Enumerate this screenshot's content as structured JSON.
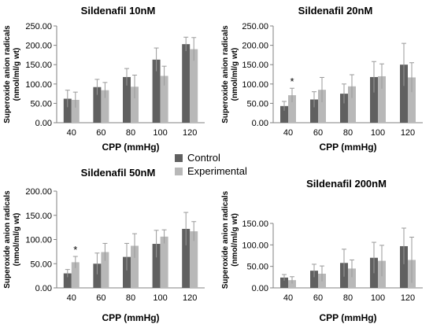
{
  "colors": {
    "control": "#606060",
    "experimental": "#b8b8b8",
    "error_bar": "#9a9a9a",
    "axis": "#808080"
  },
  "legend": {
    "control_label": "Control",
    "experimental_label": "Experimental"
  },
  "chart_data": [
    {
      "type": "bar",
      "title": "Sildenafil 10nM",
      "ylabel": "Superoxide anion radicals (nmol/ml/g wt)",
      "xlabel": "CPP (mmHg)",
      "categories": [
        "40",
        "60",
        "80",
        "100",
        "120"
      ],
      "ylim": [
        0,
        250
      ],
      "yticks": [
        "0.00",
        "50.00",
        "100.00",
        "150.00",
        "200.00",
        "250.00"
      ],
      "series": [
        {
          "name": "Control",
          "values": [
            62,
            92,
            118,
            163,
            203
          ],
          "errors": [
            22,
            20,
            22,
            30,
            18
          ]
        },
        {
          "name": "Experimental",
          "values": [
            59,
            84,
            93,
            121,
            190
          ],
          "errors": [
            20,
            20,
            30,
            25,
            30
          ]
        }
      ],
      "annotations": []
    },
    {
      "type": "bar",
      "title": "Sildenafil 20nM",
      "ylabel": "Superoxide anion radicals (nmol/ml/g wt)",
      "xlabel": "CPP (mmHg)",
      "categories": [
        "40",
        "60",
        "80",
        "100",
        "120"
      ],
      "ylim": [
        0,
        250
      ],
      "yticks": [
        "0.00",
        "50.00",
        "100.00",
        "150.00",
        "200.00",
        "250.00"
      ],
      "series": [
        {
          "name": "Control",
          "values": [
            43,
            60,
            75,
            118,
            150
          ],
          "errors": [
            12,
            20,
            25,
            40,
            55
          ]
        },
        {
          "name": "Experimental",
          "values": [
            71,
            85,
            94,
            120,
            117
          ],
          "errors": [
            18,
            32,
            30,
            32,
            38
          ]
        }
      ],
      "annotations": [
        {
          "category": "40",
          "series": "Experimental",
          "text": "*"
        }
      ]
    },
    {
      "type": "bar",
      "title": "Sildenafil 50nM",
      "ylabel": "Superoxide anion radicals (nmol/ml/g wt)",
      "xlabel": "CPP (mmHg)",
      "categories": [
        "40",
        "60",
        "80",
        "100",
        "120"
      ],
      "ylim": [
        0,
        200
      ],
      "yticks": [
        "0.00",
        "50.00",
        "100.00",
        "150.00",
        "200.00"
      ],
      "series": [
        {
          "name": "Control",
          "values": [
            30,
            50,
            64,
            91,
            122
          ],
          "errors": [
            8,
            22,
            28,
            28,
            34
          ]
        },
        {
          "name": "Experimental",
          "values": [
            53,
            74,
            87,
            106,
            117
          ],
          "errors": [
            12,
            18,
            25,
            14,
            20
          ]
        }
      ],
      "annotations": [
        {
          "category": "40",
          "series": "Experimental",
          "text": "*"
        }
      ]
    },
    {
      "type": "bar",
      "title": "Sildenafil 200nM",
      "ylabel": "Superoxide anion radicals (nmol/ml/g wt)",
      "xlabel": "CPP (mmHg)",
      "categories": [
        "40",
        "60",
        "80",
        "100",
        "120"
      ],
      "ylim": [
        0,
        150
      ],
      "yticks": [
        "0.00",
        "50.00",
        "100.00",
        "150.00"
      ],
      "series": [
        {
          "name": "Control",
          "values": [
            24,
            40,
            58,
            70,
            97
          ],
          "errors": [
            7,
            15,
            32,
            36,
            42
          ]
        },
        {
          "name": "Experimental",
          "values": [
            18,
            33,
            45,
            63,
            65
          ],
          "errors": [
            8,
            18,
            20,
            36,
            53
          ]
        }
      ],
      "annotations": []
    }
  ]
}
